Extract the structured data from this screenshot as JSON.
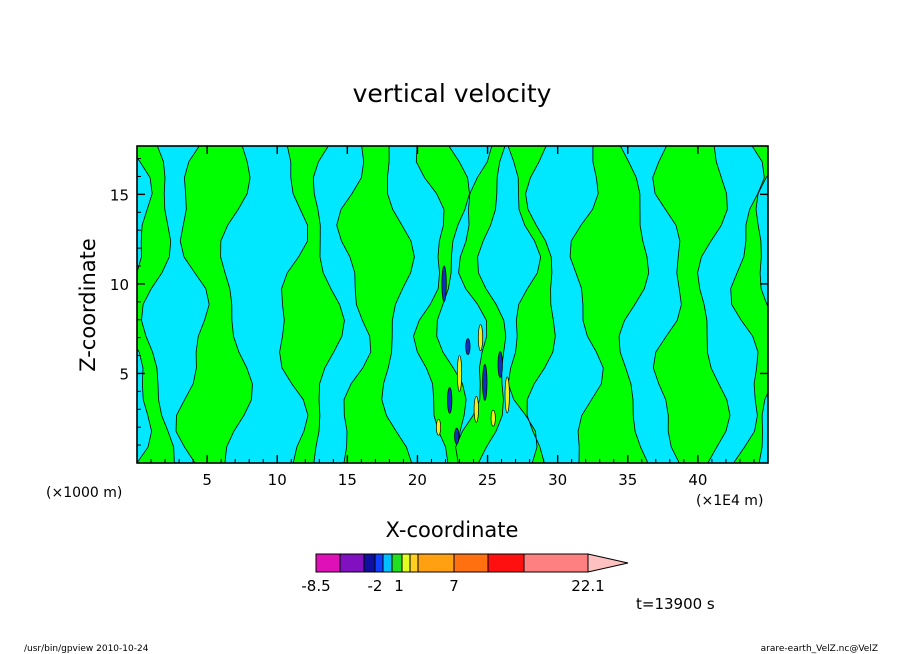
{
  "chart_data": {
    "type": "heatmap",
    "title": "vertical velocity",
    "xlabel": "X-coordinate",
    "ylabel": "Z-coordinate",
    "x_unit_left": "(×1000 m)",
    "x_unit_right": "(×1E4 m)",
    "xlim": [
      0,
      45
    ],
    "ylim": [
      0,
      17.7
    ],
    "x_ticks": [
      5,
      10,
      15,
      20,
      25,
      30,
      35,
      40
    ],
    "y_ticks": [
      5,
      10,
      15
    ],
    "x_tick_labels": [
      "5",
      "10",
      "15",
      "20",
      "25",
      "30",
      "35",
      "40"
    ],
    "y_tick_labels": [
      "5",
      "10",
      "15"
    ],
    "x_bands": [
      0,
      1.5,
      4,
      7,
      11,
      13.5,
      15.5,
      18.5,
      21,
      22.5,
      24,
      25.5,
      27.5,
      29,
      32,
      35.5,
      38,
      41,
      43.5,
      45
    ],
    "field_signs": [
      1,
      0,
      1,
      0,
      1,
      0,
      1,
      0,
      2,
      0,
      2,
      0,
      1,
      0,
      1,
      0,
      1,
      0,
      1
    ],
    "colorbar": {
      "ticks": [
        "-8.5",
        "-2",
        "1",
        "7",
        "22.1"
      ],
      "colors": [
        "#e010b8",
        "#8010c0",
        "#1010a0",
        "#1040ff",
        "#00c0ff",
        "#20e020",
        "#e0ff20",
        "#ffd020",
        "#ffa010",
        "#ff7010",
        "#ff1010",
        "#ff8080"
      ],
      "extend_max": true
    },
    "colors": {
      "positive": "#00ff00",
      "negative": "#00e8ff",
      "strong": "#1030c0",
      "updraft": "#f0f020"
    },
    "time_label": "t=13900 s"
  },
  "footer": {
    "left": "/usr/bin/gpview  2010-10-24",
    "right": "arare-earth_VelZ.nc@VelZ"
  }
}
